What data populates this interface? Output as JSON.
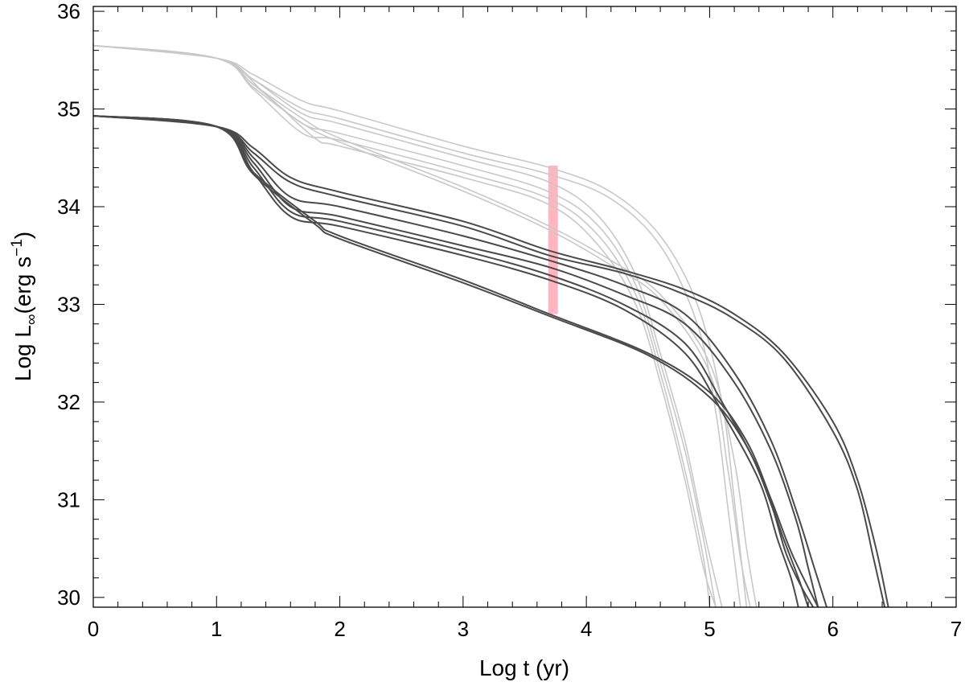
{
  "chart_data": {
    "type": "line",
    "title": "",
    "xlabel": "Log t  (yr)",
    "ylabel_parts": {
      "main": "Log L",
      "sub": "∞",
      "unit_open": "(erg s",
      "sup": "−1",
      "unit_close": ")"
    },
    "xlim": [
      0,
      7
    ],
    "ylim": [
      29.9,
      36.05
    ],
    "x_ticks": [
      "0",
      "1",
      "2",
      "3",
      "4",
      "5",
      "6",
      "7"
    ],
    "y_ticks": [
      "30",
      "31",
      "32",
      "33",
      "34",
      "35",
      "36"
    ],
    "grid": false,
    "legend": "none",
    "colors": {
      "light": "#c8c8c8",
      "dark": "#4a4a4a",
      "band": "#ffb6c1"
    },
    "highlight_band": {
      "x": 3.73,
      "y_min": 32.9,
      "y_max": 34.42,
      "color": "#ffb6c1"
    },
    "series": [
      {
        "group": "light",
        "x": [
          0,
          1,
          1.3,
          1.7,
          2,
          3,
          3.7,
          4.2,
          4.6,
          4.9,
          5.1,
          5.2,
          5.3
        ],
        "y": [
          35.65,
          35.52,
          35.35,
          35.08,
          34.98,
          34.62,
          34.4,
          34.15,
          33.7,
          33.0,
          32.0,
          31.0,
          29.9
        ]
      },
      {
        "group": "light",
        "x": [
          0,
          1,
          1.3,
          1.7,
          2,
          3,
          3.7,
          4.2,
          4.6,
          4.9,
          5.05,
          5.15,
          5.25
        ],
        "y": [
          35.65,
          35.52,
          35.3,
          35.0,
          34.9,
          34.55,
          34.33,
          34.08,
          33.6,
          32.8,
          31.9,
          30.9,
          29.9
        ]
      },
      {
        "group": "light",
        "x": [
          0,
          1,
          1.3,
          1.7,
          2,
          3,
          3.7,
          4.1,
          4.4,
          4.6,
          4.8,
          4.95,
          5.1
        ],
        "y": [
          35.65,
          35.52,
          35.3,
          34.95,
          34.85,
          34.5,
          34.25,
          33.9,
          33.3,
          32.5,
          31.6,
          30.7,
          29.9
        ]
      },
      {
        "group": "light",
        "x": [
          0,
          1,
          1.3,
          1.7,
          2,
          3,
          3.7,
          4.1,
          4.4,
          4.6,
          4.8,
          4.95,
          5.05
        ],
        "y": [
          35.65,
          35.52,
          35.25,
          34.85,
          34.75,
          34.42,
          34.15,
          33.8,
          33.2,
          32.4,
          31.5,
          30.6,
          29.9
        ]
      },
      {
        "group": "light",
        "x": [
          0,
          1,
          1.3,
          1.7,
          2,
          3,
          3.7,
          4.1,
          4.4,
          4.6,
          4.8,
          4.95,
          5.0
        ],
        "y": [
          35.65,
          35.52,
          35.2,
          34.75,
          34.68,
          34.35,
          34.08,
          33.7,
          33.1,
          32.3,
          31.3,
          30.4,
          29.9
        ]
      },
      {
        "group": "light",
        "x": [
          0,
          1,
          1.4,
          1.8,
          2,
          3,
          3.7,
          4.1,
          4.4,
          4.6,
          4.8,
          4.95,
          5.05
        ],
        "y": [
          35.65,
          35.52,
          35.15,
          34.7,
          34.62,
          34.3,
          34.02,
          33.6,
          33.0,
          32.2,
          31.2,
          30.3,
          29.9
        ]
      },
      {
        "group": "light",
        "x": [
          0,
          1,
          1.3,
          1.7,
          2,
          3,
          3.7,
          4.2,
          4.6,
          5.0,
          5.2,
          5.3,
          5.38
        ],
        "y": [
          35.65,
          35.52,
          35.25,
          34.9,
          34.7,
          34.2,
          33.8,
          33.45,
          33.1,
          32.4,
          31.4,
          30.5,
          29.9
        ]
      },
      {
        "group": "light",
        "x": [
          0,
          1,
          1.3,
          1.7,
          2,
          3,
          3.7,
          4.2,
          4.6,
          5.0,
          5.15,
          5.25,
          5.33
        ],
        "y": [
          35.65,
          35.52,
          35.22,
          34.85,
          34.66,
          34.16,
          33.76,
          33.4,
          33.05,
          32.3,
          31.3,
          30.4,
          29.9
        ]
      },
      {
        "group": "dark",
        "x": [
          0,
          1,
          1.3,
          1.6,
          2,
          3,
          3.7,
          4.3,
          4.8,
          5.2,
          5.6,
          6.0,
          6.2,
          6.35,
          6.45
        ],
        "y": [
          34.93,
          34.82,
          34.6,
          34.3,
          34.15,
          33.85,
          33.55,
          33.35,
          33.15,
          32.9,
          32.5,
          31.8,
          31.2,
          30.5,
          29.9
        ]
      },
      {
        "group": "dark",
        "x": [
          0,
          1,
          1.3,
          1.6,
          2,
          3,
          3.7,
          4.3,
          4.8,
          5.2,
          5.6,
          6.0,
          6.2,
          6.33,
          6.42
        ],
        "y": [
          34.93,
          34.82,
          34.55,
          34.25,
          34.1,
          33.8,
          33.5,
          33.32,
          33.1,
          32.85,
          32.45,
          31.7,
          31.1,
          30.4,
          29.9
        ]
      },
      {
        "group": "dark",
        "x": [
          0,
          1,
          1.3,
          1.6,
          2,
          3,
          3.7,
          4.3,
          4.8,
          5.2,
          5.5,
          5.7,
          5.85,
          5.95
        ],
        "y": [
          34.93,
          34.82,
          34.5,
          34.1,
          34.0,
          33.7,
          33.45,
          33.2,
          32.9,
          32.3,
          31.6,
          30.9,
          30.3,
          29.9
        ]
      },
      {
        "group": "dark",
        "x": [
          0,
          1,
          1.3,
          1.6,
          2,
          3,
          3.7,
          4.3,
          4.8,
          5.2,
          5.5,
          5.7,
          5.8,
          5.88
        ],
        "y": [
          34.93,
          34.82,
          34.45,
          34.0,
          33.9,
          33.6,
          33.38,
          33.1,
          32.8,
          32.2,
          31.5,
          30.8,
          30.3,
          29.9
        ]
      },
      {
        "group": "dark",
        "x": [
          0,
          1,
          1.3,
          1.6,
          2,
          3,
          3.7,
          4.3,
          4.8,
          5.1,
          5.4,
          5.6,
          5.72,
          5.8
        ],
        "y": [
          34.93,
          34.82,
          34.4,
          33.95,
          33.85,
          33.55,
          33.3,
          33.0,
          32.6,
          32.0,
          31.3,
          30.6,
          30.2,
          29.9
        ]
      },
      {
        "group": "dark",
        "x": [
          0,
          1,
          1.3,
          1.6,
          2,
          3,
          3.7,
          4.3,
          4.8,
          5.1,
          5.4,
          5.55,
          5.66,
          5.72
        ],
        "y": [
          34.93,
          34.82,
          34.35,
          33.9,
          33.8,
          33.5,
          33.25,
          32.95,
          32.5,
          31.9,
          31.2,
          30.6,
          30.2,
          29.9
        ]
      },
      {
        "group": "dark",
        "x": [
          0,
          1,
          1.3,
          1.8,
          2,
          3,
          3.7,
          4.5,
          5.0,
          5.3,
          5.5,
          5.65,
          5.78,
          5.88
        ],
        "y": [
          34.93,
          34.82,
          34.35,
          33.85,
          33.7,
          33.25,
          32.9,
          32.5,
          32.1,
          31.6,
          31.0,
          30.5,
          30.15,
          29.9
        ]
      },
      {
        "group": "dark",
        "x": [
          0,
          1,
          1.3,
          1.8,
          2,
          3,
          3.7,
          4.5,
          5.0,
          5.3,
          5.5,
          5.62,
          5.74,
          5.84
        ],
        "y": [
          34.93,
          34.82,
          34.33,
          33.82,
          33.67,
          33.22,
          32.88,
          32.48,
          32.05,
          31.55,
          30.95,
          30.45,
          30.12,
          29.9
        ]
      }
    ]
  }
}
